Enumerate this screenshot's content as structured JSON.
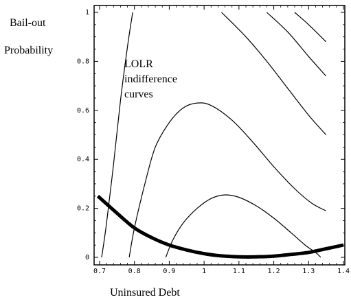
{
  "chart_data": {
    "type": "line",
    "title": "",
    "ylabel_line1": "Bail-out",
    "ylabel_line2": "Probability",
    "xlabel": "Uninsured Debt",
    "xlim": [
      0.7,
      1.4
    ],
    "ylim": [
      0,
      1
    ],
    "x_ticks": [
      "0.7",
      "0.8",
      "0.9",
      "1",
      "1.1",
      "1.2",
      "1.3",
      "1.4"
    ],
    "y_ticks": [
      "0",
      "0.2",
      "0.4",
      "0.6",
      "0.8",
      "1"
    ],
    "grid": false,
    "annotation": [
      "LOLR",
      "indifference",
      "curves"
    ],
    "series": [
      {
        "role": "indifference-curve",
        "style": "thin",
        "points": [
          [
            0.706,
            0
          ],
          [
            0.72,
            0.14
          ],
          [
            0.74,
            0.38
          ],
          [
            0.76,
            0.64
          ],
          [
            0.78,
            0.86
          ],
          [
            0.795,
            1.0
          ]
        ]
      },
      {
        "role": "indifference-curve",
        "style": "thin",
        "points": [
          [
            0.785,
            0
          ],
          [
            0.8,
            0.12
          ],
          [
            0.83,
            0.3
          ],
          [
            0.86,
            0.45
          ],
          [
            0.9,
            0.55
          ],
          [
            0.94,
            0.61
          ],
          [
            0.98,
            0.63
          ],
          [
            1.02,
            0.62
          ],
          [
            1.08,
            0.56
          ],
          [
            1.14,
            0.47
          ],
          [
            1.2,
            0.37
          ],
          [
            1.26,
            0.28
          ],
          [
            1.31,
            0.22
          ],
          [
            1.35,
            0.19
          ]
        ]
      },
      {
        "role": "indifference-curve",
        "style": "thin",
        "points": [
          [
            0.89,
            0
          ],
          [
            0.91,
            0.07
          ],
          [
            0.94,
            0.14
          ],
          [
            0.98,
            0.2
          ],
          [
            1.02,
            0.24
          ],
          [
            1.06,
            0.255
          ],
          [
            1.1,
            0.245
          ],
          [
            1.15,
            0.21
          ],
          [
            1.2,
            0.16
          ],
          [
            1.25,
            0.1
          ],
          [
            1.29,
            0.05
          ],
          [
            1.32,
            0.02
          ],
          [
            1.335,
            0
          ]
        ]
      },
      {
        "role": "indifference-curve",
        "style": "thin",
        "points": [
          [
            1.05,
            1.0
          ],
          [
            1.12,
            0.9
          ],
          [
            1.18,
            0.8
          ],
          [
            1.24,
            0.69
          ],
          [
            1.3,
            0.58
          ],
          [
            1.35,
            0.5
          ]
        ]
      },
      {
        "role": "indifference-curve",
        "style": "thin",
        "points": [
          [
            1.18,
            1.0
          ],
          [
            1.24,
            0.92
          ],
          [
            1.3,
            0.82
          ],
          [
            1.35,
            0.74
          ]
        ]
      },
      {
        "role": "indifference-curve",
        "style": "thin",
        "points": [
          [
            1.26,
            1.0
          ],
          [
            1.3,
            0.95
          ],
          [
            1.35,
            0.88
          ]
        ]
      },
      {
        "role": "constraint",
        "style": "thick",
        "points": [
          [
            0.695,
            0.25
          ],
          [
            0.75,
            0.18
          ],
          [
            0.8,
            0.12
          ],
          [
            0.85,
            0.08
          ],
          [
            0.9,
            0.05
          ],
          [
            0.95,
            0.03
          ],
          [
            1.0,
            0.015
          ],
          [
            1.05,
            0.006
          ],
          [
            1.1,
            0.002
          ],
          [
            1.15,
            0.002
          ],
          [
            1.2,
            0.005
          ],
          [
            1.25,
            0.012
          ],
          [
            1.3,
            0.02
          ],
          [
            1.35,
            0.035
          ],
          [
            1.4,
            0.05
          ]
        ]
      }
    ]
  }
}
